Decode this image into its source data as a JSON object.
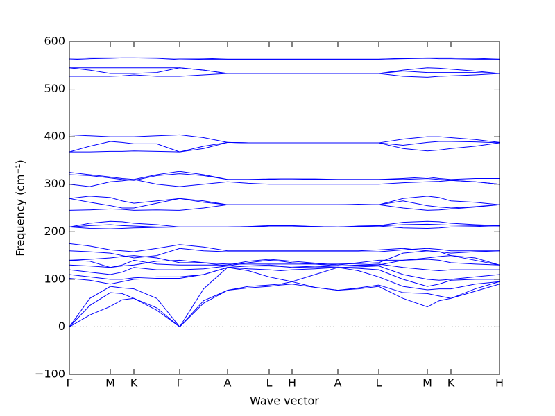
{
  "chart_data": {
    "type": "line",
    "xlabel": "Wave vector",
    "ylabel": "Frequency (cm⁻¹)",
    "x": [
      0,
      29.5,
      59,
      76,
      93,
      126,
      159,
      193.5,
      228,
      258,
      288,
      304.5,
      321,
      354,
      387,
      416.5,
      446,
      481,
      516,
      533,
      550,
      585,
      620
    ],
    "xlim": [
      0,
      620
    ],
    "xticks": [
      {
        "value": 0,
        "label": "Γ"
      },
      {
        "value": 59,
        "label": "M"
      },
      {
        "value": 93,
        "label": "K"
      },
      {
        "value": 159,
        "label": "Γ"
      },
      {
        "value": 228,
        "label": "A"
      },
      {
        "value": 288,
        "label": "L"
      },
      {
        "value": 321,
        "label": "H"
      },
      {
        "value": 387,
        "label": "A"
      },
      {
        "value": 446,
        "label": "L"
      },
      {
        "value": 516,
        "label": "M"
      },
      {
        "value": 550,
        "label": "K"
      },
      {
        "value": 620,
        "label": "H"
      }
    ],
    "ylim": [
      -100,
      600
    ],
    "yticks": [
      {
        "value": -100,
        "label": "−100"
      },
      0,
      100,
      200,
      300,
      400,
      500,
      600
    ],
    "reference_line": 0,
    "series": [
      {
        "color": "#0000ff",
        "values": [
          0,
          25,
          43,
          57,
          60,
          35,
          0,
          50,
          77,
          82,
          85,
          88,
          90,
          83,
          77,
          80,
          85,
          60,
          42,
          55,
          60,
          75,
          90
        ]
      },
      {
        "color": "#0000ff",
        "values": [
          0,
          45,
          72,
          70,
          60,
          40,
          0,
          55,
          77,
          85,
          88,
          90,
          95,
          83,
          77,
          82,
          88,
          72,
          70,
          65,
          60,
          80,
          95
        ]
      },
      {
        "color": "#0000ff",
        "values": [
          0,
          60,
          85,
          82,
          80,
          60,
          0,
          80,
          125,
          118,
          105,
          100,
          95,
          110,
          125,
          118,
          105,
          85,
          78,
          80,
          80,
          90,
          95
        ]
      },
      {
        "color": "#0000ff",
        "values": [
          102,
          98,
          90,
          95,
          100,
          102,
          102,
          110,
          125,
          122,
          120,
          118,
          120,
          122,
          125,
          123,
          120,
          100,
          85,
          90,
          98,
          100,
          100
        ]
      },
      {
        "color": "#0000ff",
        "values": [
          110,
          105,
          100,
          100,
          103,
          105,
          105,
          110,
          125,
          128,
          130,
          128,
          128,
          126,
          125,
          126,
          128,
          110,
          100,
          98,
          100,
          105,
          110
        ]
      },
      {
        "color": "#0000ff",
        "values": [
          120,
          115,
          110,
          115,
          125,
          120,
          120,
          122,
          128,
          135,
          140,
          138,
          135,
          132,
          128,
          130,
          132,
          125,
          120,
          118,
          120,
          120,
          120
        ]
      },
      {
        "color": "#0000ff",
        "values": [
          130,
          128,
          125,
          130,
          140,
          132,
          130,
          130,
          130,
          138,
          142,
          140,
          138,
          134,
          130,
          135,
          140,
          140,
          142,
          140,
          135,
          132,
          130
        ]
      },
      {
        "color": "#0000ff",
        "values": [
          140,
          142,
          145,
          148,
          150,
          145,
          135,
          135,
          132,
          132,
          132,
          132,
          132,
          132,
          132,
          133,
          135,
          155,
          160,
          158,
          150,
          145,
          130
        ]
      },
      {
        "color": "#0000ff",
        "values": [
          160,
          158,
          155,
          150,
          145,
          150,
          165,
          160,
          158,
          158,
          158,
          158,
          158,
          158,
          158,
          158,
          158,
          162,
          165,
          163,
          160,
          160,
          160
        ]
      },
      {
        "color": "#0000ff",
        "values": [
          175,
          170,
          162,
          160,
          158,
          165,
          173,
          168,
          160,
          160,
          160,
          160,
          160,
          160,
          160,
          160,
          162,
          165,
          160,
          158,
          155,
          158,
          160
        ]
      },
      {
        "color": "#0000ff",
        "values": [
          140,
          138,
          125,
          128,
          130,
          138,
          140,
          135,
          128,
          128,
          128,
          127,
          125,
          126,
          128,
          129,
          130,
          140,
          145,
          148,
          150,
          140,
          130
        ]
      },
      {
        "color": "#0000ff",
        "values": [
          210,
          213,
          215,
          213,
          212,
          210,
          210,
          210,
          210,
          211,
          212,
          212,
          212,
          211,
          210,
          211,
          212,
          215,
          216,
          215,
          214,
          213,
          212
        ]
      },
      {
        "color": "#0000ff",
        "values": [
          210,
          218,
          222,
          221,
          218,
          215,
          210,
          210,
          210,
          211,
          213,
          213,
          213,
          211,
          210,
          212,
          213,
          220,
          222,
          221,
          218,
          215,
          213
        ]
      },
      {
        "color": "#0000ff",
        "values": [
          210,
          207,
          206,
          207,
          208,
          209,
          210,
          210,
          210,
          210,
          212,
          212,
          212,
          211,
          210,
          211,
          212,
          208,
          207,
          208,
          210,
          211,
          213
        ]
      },
      {
        "color": "#0000ff",
        "values": [
          245,
          246,
          248,
          247,
          245,
          246,
          245,
          250,
          257,
          257,
          257,
          257,
          257,
          257,
          257,
          257,
          257,
          250,
          245,
          246,
          248,
          252,
          257
        ]
      },
      {
        "color": "#0000ff",
        "values": [
          270,
          262,
          255,
          250,
          250,
          260,
          270,
          262,
          257,
          257,
          257,
          257,
          257,
          257,
          257,
          257,
          257,
          265,
          255,
          252,
          250,
          253,
          257
        ]
      },
      {
        "color": "#0000ff",
        "values": [
          270,
          275,
          272,
          265,
          260,
          265,
          270,
          265,
          257,
          257,
          257,
          257,
          257,
          257,
          257,
          258,
          257,
          270,
          275,
          272,
          265,
          262,
          257
        ]
      },
      {
        "color": "#0000ff",
        "values": [
          300,
          295,
          305,
          307,
          310,
          300,
          295,
          300,
          305,
          302,
          300,
          300,
          300,
          300,
          300,
          300,
          300,
          303,
          305,
          306,
          308,
          305,
          300
        ]
      },
      {
        "color": "#0000ff",
        "values": [
          320,
          318,
          313,
          310,
          308,
          318,
          322,
          318,
          310,
          310,
          310,
          311,
          311,
          310,
          310,
          310,
          310,
          310,
          312,
          310,
          308,
          305,
          300
        ]
      },
      {
        "color": "#0000ff",
        "values": [
          325,
          320,
          315,
          312,
          310,
          320,
          327,
          320,
          310,
          310,
          311,
          311,
          311,
          311,
          310,
          310,
          310,
          312,
          315,
          312,
          310,
          312,
          312
        ]
      },
      {
        "color": "#0000ff",
        "values": [
          368,
          368,
          369,
          369,
          370,
          369,
          368,
          375,
          388,
          387,
          387,
          387,
          387,
          387,
          387,
          387,
          387,
          375,
          370,
          372,
          375,
          380,
          387
        ]
      },
      {
        "color": "#0000ff",
        "values": [
          368,
          380,
          390,
          388,
          385,
          385,
          368,
          380,
          388,
          387,
          387,
          387,
          387,
          387,
          387,
          387,
          387,
          382,
          388,
          390,
          390,
          389,
          387
        ]
      },
      {
        "color": "#0000ff",
        "values": [
          404,
          402,
          400,
          400,
          400,
          402,
          404,
          398,
          388,
          387,
          387,
          387,
          387,
          387,
          387,
          387,
          387,
          395,
          400,
          400,
          398,
          394,
          388
        ]
      },
      {
        "color": "#0000ff",
        "values": [
          527,
          527,
          527,
          528,
          530,
          527,
          527,
          530,
          533,
          533,
          533,
          533,
          533,
          533,
          533,
          533,
          533,
          527,
          525,
          527,
          528,
          530,
          533
        ]
      },
      {
        "color": "#0000ff",
        "values": [
          545,
          540,
          533,
          533,
          533,
          535,
          545,
          540,
          533,
          533,
          533,
          533,
          533,
          533,
          533,
          533,
          533,
          538,
          535,
          535,
          535,
          535,
          533
        ]
      },
      {
        "color": "#0000ff",
        "values": [
          545,
          545,
          545,
          545,
          545,
          545,
          545,
          540,
          533,
          533,
          533,
          533,
          533,
          533,
          533,
          533,
          533,
          540,
          545,
          544,
          542,
          538,
          533
        ]
      },
      {
        "color": "#0000ff",
        "values": [
          565,
          566,
          566,
          566,
          566,
          566,
          565,
          565,
          563,
          563,
          563,
          563,
          563,
          563,
          563,
          563,
          563,
          565,
          566,
          566,
          566,
          565,
          563
        ]
      },
      {
        "color": "#0000ff",
        "values": [
          562,
          564,
          565,
          566,
          566,
          565,
          562,
          563,
          563,
          563,
          563,
          563,
          563,
          563,
          563,
          563,
          563,
          564,
          565,
          564,
          564,
          563,
          563
        ]
      }
    ]
  }
}
